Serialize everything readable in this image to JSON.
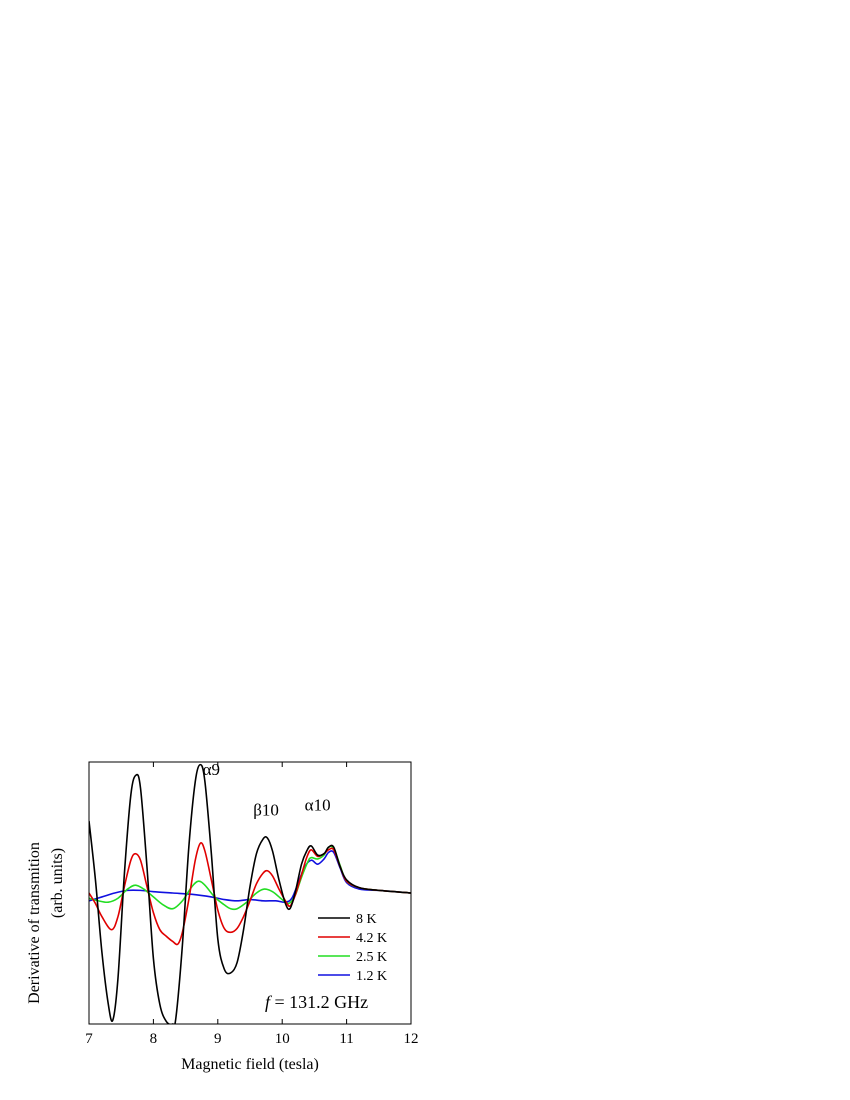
{
  "chart_data": {
    "type": "line",
    "xlabel": "Magnetic field (tesla)",
    "ylabel_line1": "Derivative of transmition",
    "ylabel_line2": "(arb. units)",
    "xlim": [
      7,
      12
    ],
    "ylim": [
      -1.0,
      1.0
    ],
    "xticks": [
      "7",
      "8",
      "9",
      "10",
      "11",
      "12"
    ],
    "y_tick_labels_shown": false,
    "grid": false,
    "legend_position": "lower-right",
    "annotation_variable": "f",
    "annotation_text": " = 131.2 GHz",
    "peak_labels": [
      {
        "text": "α9",
        "x": 8.9,
        "y": 0.9
      },
      {
        "text": "β10",
        "x": 9.75,
        "y": 0.59
      },
      {
        "text": "α10",
        "x": 10.55,
        "y": 0.63
      }
    ],
    "series": [
      {
        "name": "8 K",
        "color": "#000000",
        "x": [
          7.0,
          7.1,
          7.2,
          7.3,
          7.37,
          7.45,
          7.55,
          7.65,
          7.73,
          7.8,
          7.9,
          8.0,
          8.1,
          8.2,
          8.3,
          8.35,
          8.45,
          8.55,
          8.65,
          8.73,
          8.8,
          8.9,
          9.0,
          9.1,
          9.2,
          9.3,
          9.4,
          9.5,
          9.6,
          9.7,
          9.77,
          9.85,
          9.95,
          10.05,
          10.12,
          10.2,
          10.3,
          10.38,
          10.45,
          10.55,
          10.65,
          10.72,
          10.8,
          10.9,
          11.0,
          11.2,
          11.5,
          12.0
        ],
        "y": [
          0.55,
          0.1,
          -0.45,
          -0.85,
          -0.97,
          -0.65,
          0.15,
          0.75,
          0.9,
          0.8,
          0.2,
          -0.5,
          -0.85,
          -0.98,
          -1.0,
          -0.95,
          -0.4,
          0.35,
          0.85,
          0.98,
          0.85,
          0.3,
          -0.35,
          -0.58,
          -0.61,
          -0.53,
          -0.28,
          0.05,
          0.3,
          0.41,
          0.42,
          0.32,
          0.1,
          -0.08,
          -0.12,
          0.0,
          0.22,
          0.32,
          0.36,
          0.29,
          0.3,
          0.35,
          0.35,
          0.2,
          0.1,
          0.04,
          0.02,
          0.0
        ]
      },
      {
        "name": "4.2 K",
        "color": "#e00000",
        "x": [
          7.0,
          7.1,
          7.2,
          7.35,
          7.45,
          7.55,
          7.65,
          7.72,
          7.8,
          7.9,
          8.0,
          8.1,
          8.2,
          8.3,
          8.38,
          8.45,
          8.55,
          8.65,
          8.73,
          8.8,
          8.9,
          9.0,
          9.1,
          9.2,
          9.3,
          9.4,
          9.5,
          9.6,
          9.7,
          9.77,
          9.85,
          9.95,
          10.05,
          10.12,
          10.2,
          10.3,
          10.38,
          10.45,
          10.55,
          10.65,
          10.72,
          10.8,
          10.9,
          11.0,
          11.2,
          11.5,
          12.0
        ],
        "y": [
          0.0,
          -0.08,
          -0.18,
          -0.28,
          -0.18,
          0.05,
          0.25,
          0.3,
          0.25,
          0.05,
          -0.15,
          -0.28,
          -0.33,
          -0.37,
          -0.39,
          -0.3,
          -0.05,
          0.25,
          0.38,
          0.32,
          0.1,
          -0.13,
          -0.27,
          -0.3,
          -0.27,
          -0.18,
          -0.06,
          0.07,
          0.15,
          0.17,
          0.13,
          0.03,
          -0.06,
          -0.1,
          -0.02,
          0.14,
          0.27,
          0.33,
          0.28,
          0.3,
          0.33,
          0.33,
          0.2,
          0.09,
          0.04,
          0.02,
          0.0
        ]
      },
      {
        "name": "2.5 K",
        "color": "#22dd22",
        "x": [
          7.0,
          7.15,
          7.3,
          7.45,
          7.6,
          7.72,
          7.85,
          8.0,
          8.15,
          8.3,
          8.45,
          8.6,
          8.7,
          8.8,
          8.95,
          9.1,
          9.2,
          9.3,
          9.45,
          9.6,
          9.72,
          9.85,
          10.0,
          10.1,
          10.2,
          10.3,
          10.4,
          10.45,
          10.55,
          10.65,
          10.72,
          10.8,
          10.9,
          11.0,
          11.2,
          11.5,
          12.0
        ],
        "y": [
          -0.04,
          -0.06,
          -0.07,
          -0.04,
          0.03,
          0.06,
          0.03,
          -0.03,
          -0.09,
          -0.12,
          -0.06,
          0.05,
          0.09,
          0.06,
          -0.03,
          -0.09,
          -0.12,
          -0.12,
          -0.07,
          0.0,
          0.03,
          0.01,
          -0.05,
          -0.08,
          -0.02,
          0.12,
          0.24,
          0.27,
          0.26,
          0.29,
          0.35,
          0.34,
          0.21,
          0.09,
          0.04,
          0.02,
          0.0
        ]
      },
      {
        "name": "1.2 K",
        "color": "#1010e0",
        "x": [
          7.0,
          7.2,
          7.4,
          7.6,
          7.8,
          8.0,
          8.3,
          8.6,
          8.9,
          9.1,
          9.3,
          9.5,
          9.7,
          9.9,
          10.05,
          10.15,
          10.25,
          10.35,
          10.45,
          10.55,
          10.65,
          10.72,
          10.8,
          10.9,
          11.0,
          11.2,
          11.5,
          12.0
        ],
        "y": [
          -0.06,
          -0.03,
          0.0,
          0.02,
          0.02,
          0.01,
          0.0,
          -0.01,
          -0.03,
          -0.05,
          -0.06,
          -0.05,
          -0.06,
          -0.06,
          -0.07,
          -0.04,
          0.08,
          0.2,
          0.25,
          0.22,
          0.26,
          0.31,
          0.31,
          0.19,
          0.08,
          0.03,
          0.02,
          0.0
        ]
      }
    ]
  }
}
